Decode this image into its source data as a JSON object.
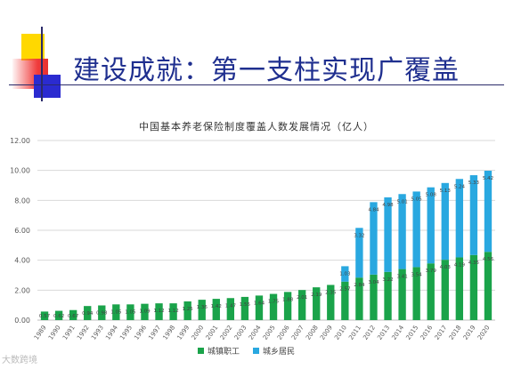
{
  "slide": {
    "title": "建设成就：第一支柱实现广覆盖",
    "watermark": "大数跨境"
  },
  "colors": {
    "title": "#1f2f8f",
    "urban_employees": "#1aa34a",
    "urban_rural_residents": "#29a8e0"
  },
  "chart_data": {
    "type": "bar",
    "stacked": true,
    "title": "中国基本养老保险制度覆盖人数发展情况（亿人）",
    "ylim": [
      0,
      12
    ],
    "yticks": [
      "0.00",
      "2.00",
      "4.00",
      "6.00",
      "8.00",
      "10.00",
      "12.00"
    ],
    "grid": true,
    "legend_position": "bottom",
    "categories": [
      "1989",
      "1990",
      "1991",
      "1992",
      "1993",
      "1994",
      "1995",
      "1996",
      "1997",
      "1998",
      "1999",
      "2000",
      "2001",
      "2002",
      "2003",
      "2004",
      "2005",
      "2006",
      "2007",
      "2008",
      "2009",
      "2010",
      "2011",
      "2012",
      "2013",
      "2014",
      "2015",
      "2016",
      "2017",
      "2018",
      "2019",
      "2020"
    ],
    "series": [
      {
        "name": "城镇职工",
        "color": "#1aa34a",
        "values": [
          0.57,
          0.62,
          0.67,
          0.94,
          0.98,
          1.05,
          1.05,
          1.09,
          1.12,
          1.12,
          1.25,
          1.36,
          1.42,
          1.47,
          1.55,
          1.64,
          1.75,
          1.88,
          2.01,
          2.19,
          2.35,
          2.57,
          2.84,
          3.04,
          3.22,
          3.41,
          3.54,
          3.79,
          4.03,
          4.19,
          4.35,
          4.56
        ],
        "labels": [
          "0.57",
          "0.62",
          "0.67",
          "0.94",
          "0.98",
          "1.05",
          "1.05",
          "1.09",
          "1.12",
          "1.12",
          "1.25",
          "1.36",
          "1.42",
          "1.47",
          "1.55",
          "1.64",
          "1.75",
          "1.88",
          "2.01",
          "2.19",
          "2.35",
          "2.57",
          "2.84",
          "3.04",
          "3.22",
          "3.41",
          "3.54",
          "3.79",
          "4.03",
          "4.19",
          "4.35",
          "4.56"
        ]
      },
      {
        "name": "城乡居民",
        "color": "#29a8e0",
        "values": [
          0,
          0,
          0,
          0,
          0,
          0,
          0,
          0,
          0,
          0,
          0,
          0,
          0,
          0,
          0,
          0,
          0,
          0,
          0,
          0,
          0,
          1.03,
          3.32,
          4.84,
          4.98,
          5.01,
          5.05,
          5.08,
          5.13,
          5.24,
          5.33,
          5.42
        ],
        "labels": [
          "",
          "",
          "",
          "",
          "",
          "",
          "",
          "",
          "",
          "",
          "",
          "",
          "",
          "",
          "",
          "",
          "",
          "",
          "",
          "",
          "",
          "1.03",
          "3.32",
          "4.84",
          "4.98",
          "5.01",
          "5.05",
          "5.08",
          "5.13",
          "5.24",
          "5.33",
          "5.42"
        ]
      }
    ]
  }
}
